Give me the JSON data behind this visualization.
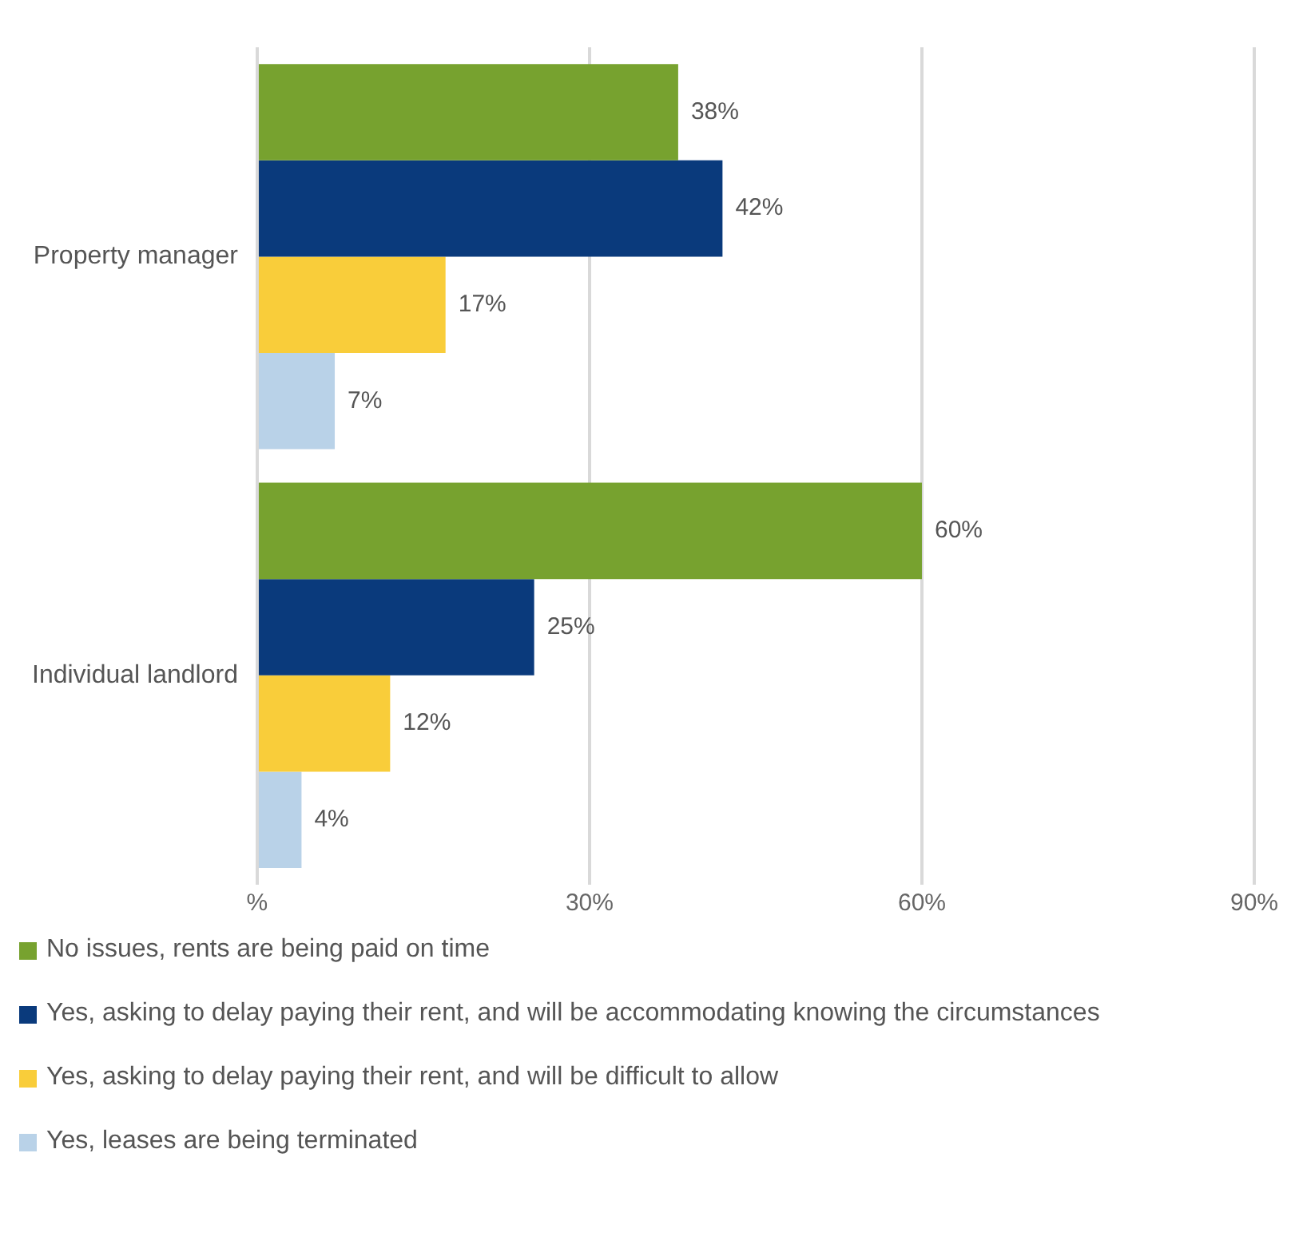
{
  "chart_data": {
    "type": "bar",
    "orientation": "horizontal",
    "categories": [
      "Property manager",
      "Individual landlord"
    ],
    "series": [
      {
        "name": "No issues, rents are being paid on time",
        "color": "#77a22f",
        "values": [
          38,
          60
        ],
        "value_labels": [
          "38%",
          "60%"
        ]
      },
      {
        "name": "Yes, asking to delay paying their rent, and will be accommodating knowing the circumstances",
        "color": "#0a3a7c",
        "values": [
          42,
          25
        ],
        "value_labels": [
          "42%",
          "25%"
        ]
      },
      {
        "name": "Yes, asking to delay paying their rent, and will be difficult to allow",
        "color": "#f9cd3a",
        "values": [
          17,
          12
        ],
        "value_labels": [
          "17%",
          "12%"
        ]
      },
      {
        "name": "Yes, leases are being terminated",
        "color": "#b9d2e8",
        "values": [
          7,
          4
        ],
        "value_labels": [
          "7%",
          "4%"
        ]
      }
    ],
    "xlim": [
      0,
      90
    ],
    "xticks": [
      {
        "value": 0,
        "label": "%"
      },
      {
        "value": 30,
        "label": "30%"
      },
      {
        "value": 60,
        "label": "60%"
      },
      {
        "value": 90,
        "label": "90%"
      }
    ],
    "grid": "x",
    "legend": "bottom"
  }
}
